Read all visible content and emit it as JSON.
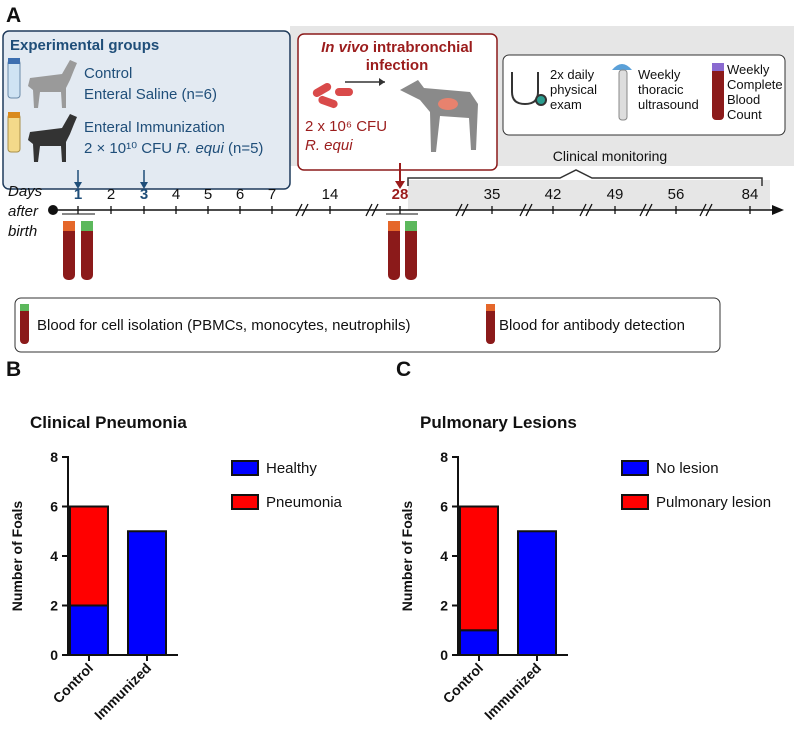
{
  "panel_a": {
    "label": "A",
    "groups": {
      "title": "Experimental groups",
      "control": [
        "Control",
        "Enteral Saline (n=6)"
      ],
      "immunized": [
        "Enteral Immunization",
        "2 × 10¹⁰ CFU ",
        "R. equi",
        " (n=5)"
      ]
    },
    "infection": {
      "title": [
        "In vivo",
        " intrabronchial",
        "infection"
      ],
      "dose": [
        "2 x 10⁶ CFU",
        "R. equi"
      ]
    },
    "monitoring": {
      "exam": [
        "2x daily",
        "physical",
        "exam"
      ],
      "ultrasound": [
        "Weekly",
        "thoracic",
        "ultrasound"
      ],
      "blood": [
        "Weekly",
        "Complete",
        "Blood",
        "Count"
      ],
      "label": "Clinical monitoring"
    },
    "timeline": {
      "axis_label": [
        "Days",
        "after",
        "birth"
      ],
      "days": [
        1,
        2,
        3,
        4,
        5,
        6,
        7,
        14,
        28,
        35,
        42,
        49,
        56,
        84
      ]
    },
    "legend": [
      "Blood for cell isolation (PBMCs, monocytes, neutrophils)",
      "Blood for antibody detection"
    ]
  },
  "chart_data": [
    {
      "type": "bar",
      "label": "B",
      "title": "Clinical Pneumonia",
      "ylabel": "Number of Foals",
      "categories": [
        "Control",
        "Immunized"
      ],
      "series": [
        {
          "name": "Healthy",
          "color": "#0000ff",
          "values": [
            2,
            5
          ]
        },
        {
          "name": "Pneumonia",
          "color": "#ff0000",
          "values": [
            4,
            0
          ]
        }
      ],
      "stacked": true,
      "ylim": [
        0,
        8
      ],
      "yticks": [
        0,
        2,
        4,
        6,
        8
      ]
    },
    {
      "type": "bar",
      "label": "C",
      "title": "Pulmonary Lesions",
      "ylabel": "Number of Foals",
      "categories": [
        "Control",
        "Immunized"
      ],
      "series": [
        {
          "name": "No lesion",
          "color": "#0000ff",
          "values": [
            1,
            5
          ]
        },
        {
          "name": "Pulmonary lesion",
          "color": "#ff0000",
          "values": [
            5,
            0
          ]
        }
      ],
      "stacked": true,
      "ylim": [
        0,
        8
      ],
      "yticks": [
        0,
        2,
        4,
        6,
        8
      ]
    }
  ]
}
